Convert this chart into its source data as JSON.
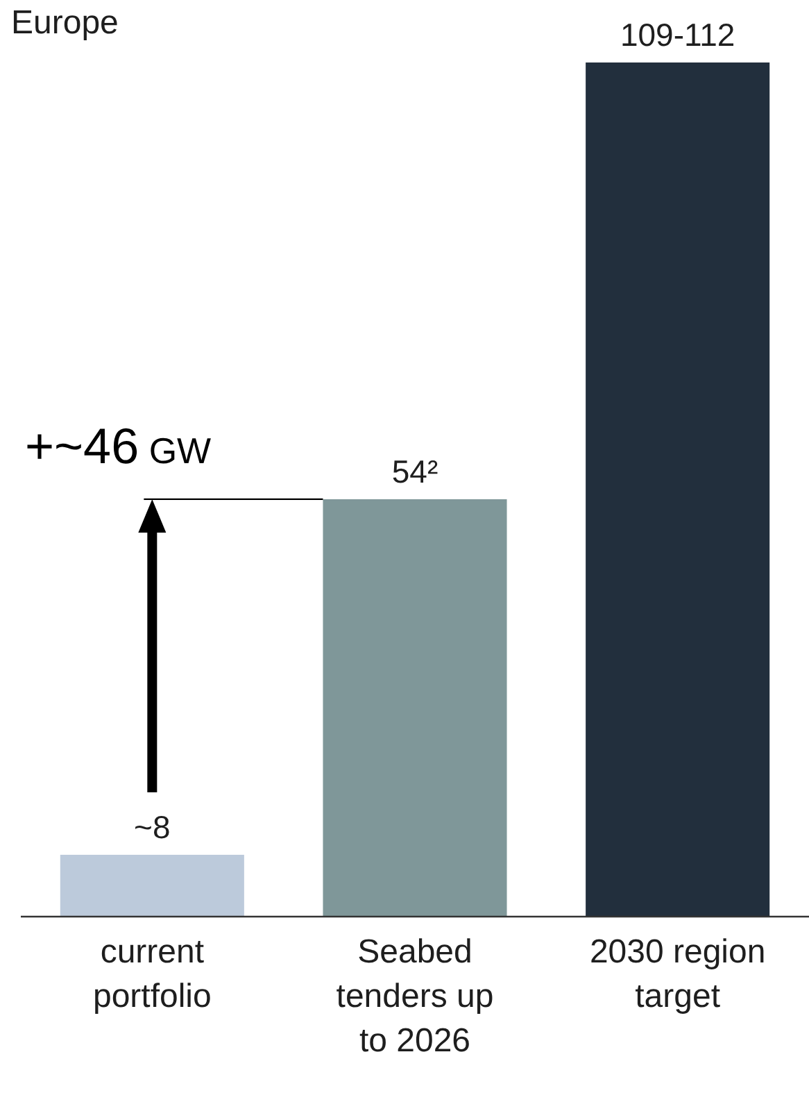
{
  "chart_data": {
    "type": "bar",
    "title": "Europe",
    "categories": [
      "current portfolio",
      "Seabed tenders up to 2026",
      "2030 region target"
    ],
    "values": [
      8,
      54,
      110.5
    ],
    "colors": [
      "#bccadb",
      "#7f9799",
      "#222f3d"
    ],
    "value_labels": [
      "~8",
      "54²",
      "109-112"
    ],
    "annotations": [
      "+~46 GW"
    ]
  }
}
